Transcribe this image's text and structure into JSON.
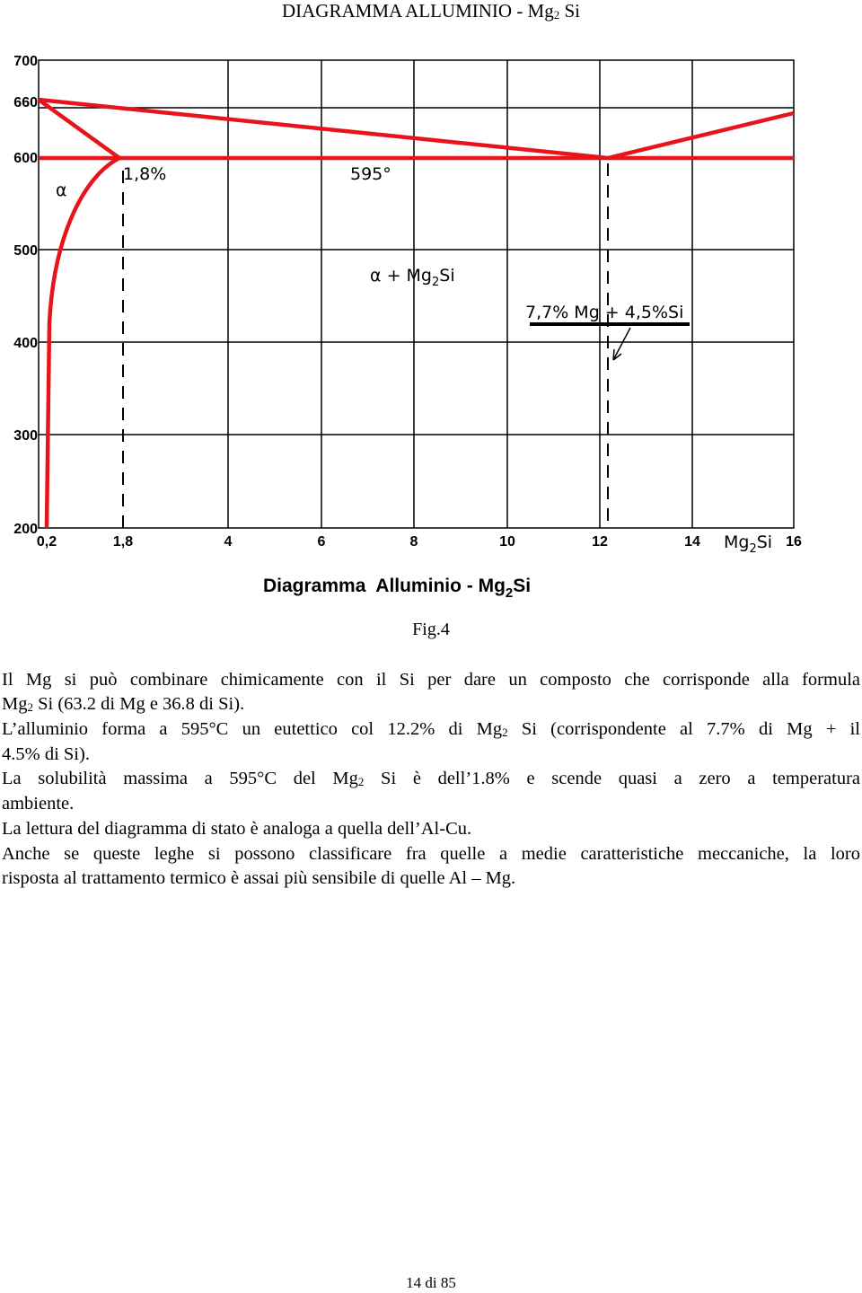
{
  "header": {
    "parts": [
      "DIAGRAMMA ALLUMINIO - Mg",
      "2",
      " Si"
    ]
  },
  "figure": {
    "y_tick_labels": [
      "700",
      "660",
      "600",
      "500",
      "400",
      "300",
      "200"
    ],
    "x_tick_labels": [
      "0,2",
      "1,8",
      "4",
      "6",
      "8",
      "10",
      "12",
      "14",
      "16"
    ],
    "x_axis_label": [
      "Mg",
      "2",
      "Si"
    ],
    "labels": {
      "alpha": "α",
      "solubility": "1,8%",
      "eutectic_temp": "595°",
      "phase_field": [
        "α + Mg",
        "2",
        "Si"
      ],
      "eutectic_comp": "7,7% Mg + 4,5%Si"
    },
    "title": [
      "Diagramma  Alluminio - Mg",
      "2",
      "Si"
    ],
    "caption": "Fig.4"
  },
  "paragraph_lines": [
    [
      "Il Mg si può combinare chimicamente con il Si per dare un composto che corrisponde alla formula"
    ],
    [
      "Mg",
      "2",
      " Si  (63.2 di Mg e 36.8 di Si)."
    ],
    [
      "L’alluminio forma a 595°C un eutettico col 12.2% di Mg",
      "2",
      " Si (corrispondente al 7.7% di Mg + il"
    ],
    [
      "4.5% di Si)."
    ],
    [
      "La solubilità massima a 595°C del Mg",
      "2",
      " Si è dell’1.8% e scende quasi a zero a temperatura"
    ],
    [
      "ambiente."
    ],
    [
      "La lettura del diagramma di stato è analoga a quella dell’Al-Cu."
    ],
    [
      "Anche se queste leghe si possono classificare fra quelle a medie caratteristiche meccaniche, la loro"
    ],
    [
      "risposta al trattamento termico è assai più sensibile di quelle Al – Mg."
    ]
  ],
  "footer": "14 di 85"
}
